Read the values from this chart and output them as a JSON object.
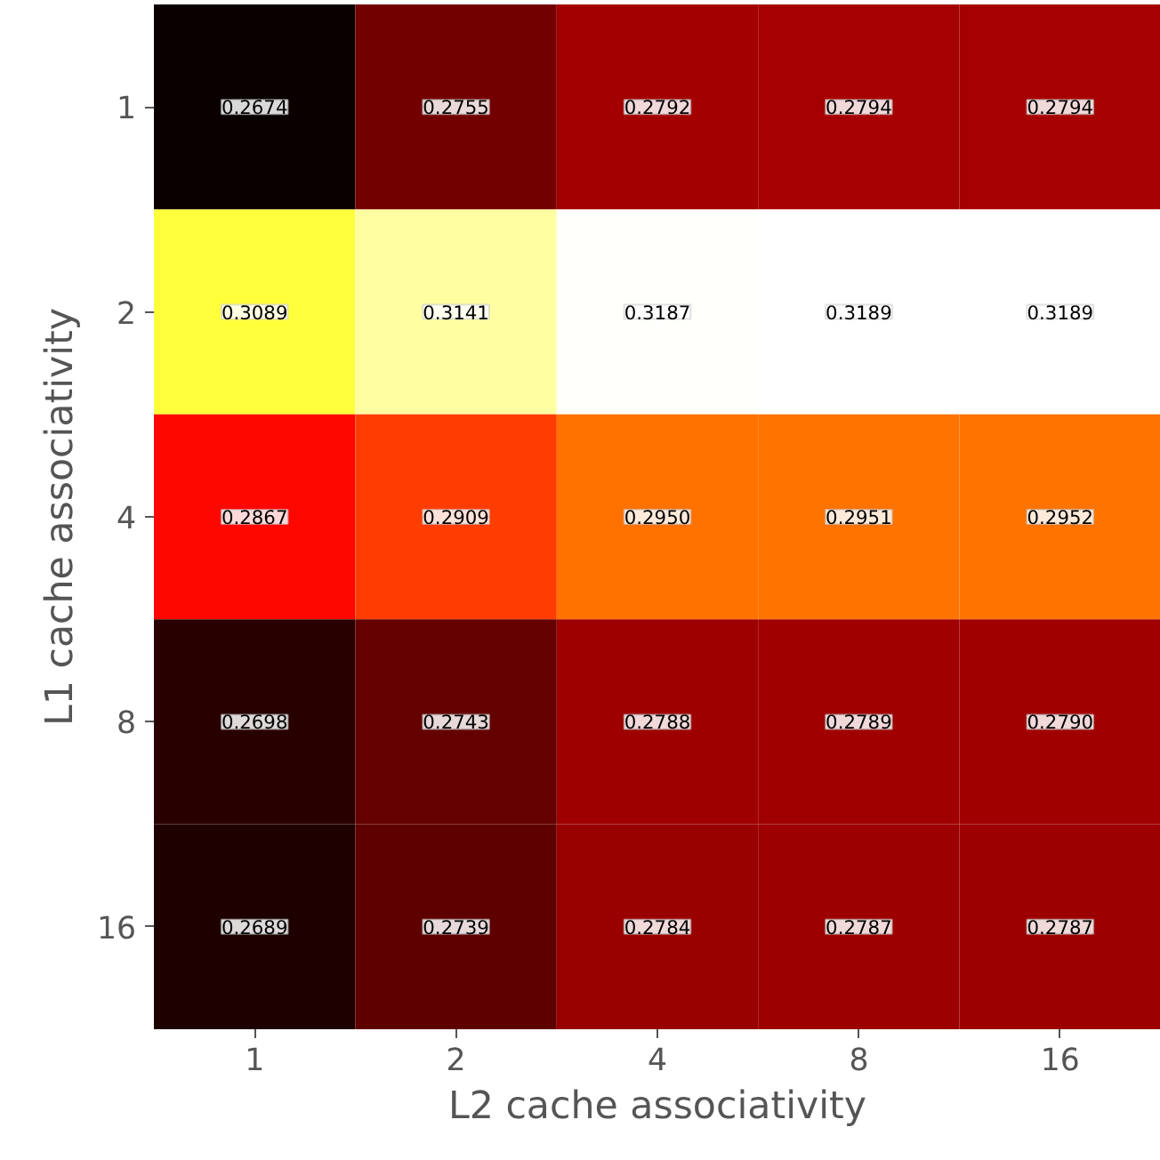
{
  "chart_data": {
    "type": "heatmap",
    "xlabel": "L2 cache associativity",
    "ylabel": "L1 cache associativity",
    "categories": [
      "1",
      "2",
      "4",
      "8",
      "16"
    ],
    "y_categories": [
      "1",
      "2",
      "4",
      "8",
      "16"
    ],
    "cells": [
      [
        0.2674,
        0.2755,
        0.2792,
        0.2794,
        0.2794
      ],
      [
        0.3089,
        0.3141,
        0.3187,
        0.3189,
        0.3189
      ],
      [
        0.2867,
        0.2909,
        0.295,
        0.2951,
        0.2952
      ],
      [
        0.2698,
        0.2743,
        0.2788,
        0.2789,
        0.279
      ],
      [
        0.2689,
        0.2739,
        0.2784,
        0.2787,
        0.2787
      ]
    ],
    "cell_labels": [
      [
        "0.2674",
        "0.2755",
        "0.2792",
        "0.2794",
        "0.2794"
      ],
      [
        "0.3089",
        "0.3141",
        "0.3187",
        "0.3189",
        "0.3189"
      ],
      [
        "0.2867",
        "0.2909",
        "0.2950",
        "0.2951",
        "0.2952"
      ],
      [
        "0.2698",
        "0.2743",
        "0.2788",
        "0.2789",
        "0.2790"
      ],
      [
        "0.2689",
        "0.2739",
        "0.2784",
        "0.2787",
        "0.2787"
      ]
    ],
    "data_labels": true,
    "grid": false
  }
}
